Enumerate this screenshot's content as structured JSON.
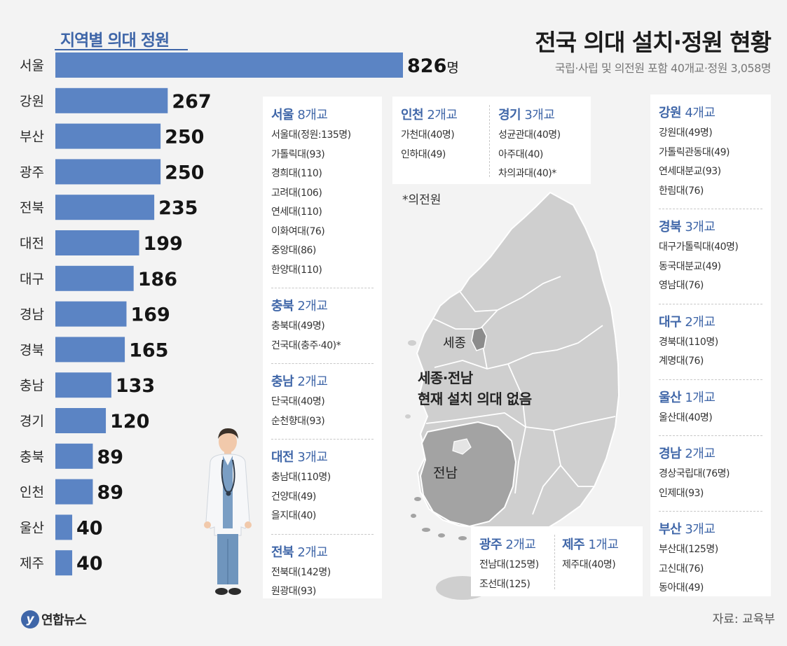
{
  "title": "전국 의대 설치·정원 현황",
  "subtitle": "국립·사립 및 의전원 포함 40개교·정원 3,058명",
  "chart_data": {
    "type": "bar",
    "orientation": "horizontal",
    "title": "지역별 의대 정원",
    "unit": "명",
    "categories": [
      "서울",
      "강원",
      "부산",
      "광주",
      "전북",
      "대전",
      "대구",
      "경남",
      "경북",
      "충남",
      "경기",
      "충북",
      "인천",
      "울산",
      "제주"
    ],
    "values": [
      826,
      267,
      250,
      250,
      235,
      199,
      186,
      169,
      165,
      133,
      120,
      89,
      89,
      40,
      40
    ],
    "xlim": [
      0,
      826
    ],
    "color": "#5b84c4"
  },
  "boxes": {
    "left": [
      {
        "name": "서울",
        "count": "8개교",
        "schools": [
          "서울대(정원:135명)",
          "가톨릭대(93)",
          "경희대(110)",
          "고려대(106)",
          "연세대(110)",
          "이화여대(76)",
          "중앙대(86)",
          "한양대(110)"
        ]
      },
      {
        "name": "충북",
        "count": "2개교",
        "schools": [
          "충북대(49명)",
          "건국대(충주·40)*"
        ]
      },
      {
        "name": "충남",
        "count": "2개교",
        "schools": [
          "단국대(40명)",
          "순천향대(93)"
        ]
      },
      {
        "name": "대전",
        "count": "3개교",
        "schools": [
          "충남대(110명)",
          "건양대(49)",
          "을지대(40)"
        ]
      },
      {
        "name": "전북",
        "count": "2개교",
        "schools": [
          "전북대(142명)",
          "원광대(93)"
        ]
      }
    ],
    "top": [
      {
        "name": "인천",
        "count": "2개교",
        "schools": [
          "가천대(40명)",
          "인하대(49)"
        ]
      },
      {
        "name": "경기",
        "count": "3개교",
        "schools": [
          "성균관대(40명)",
          "아주대(40)",
          "차의과대(40)*"
        ]
      }
    ],
    "right": [
      {
        "name": "강원",
        "count": "4개교",
        "schools": [
          "강원대(49명)",
          "가톨릭관동대(49)",
          "연세대분교(93)",
          "한림대(76)"
        ]
      },
      {
        "name": "경북",
        "count": "3개교",
        "schools": [
          "대구가톨릭대(40명)",
          "동국대분교(49)",
          "영남대(76)"
        ]
      },
      {
        "name": "대구",
        "count": "2개교",
        "schools": [
          "경북대(110명)",
          "계명대(76)"
        ]
      },
      {
        "name": "울산",
        "count": "1개교",
        "schools": [
          "울산대(40명)"
        ]
      },
      {
        "name": "경남",
        "count": "2개교",
        "schools": [
          "경상국립대(76명)",
          "인제대(93)"
        ]
      },
      {
        "name": "부산",
        "count": "3개교",
        "schools": [
          "부산대(125명)",
          "고신대(76)",
          "동아대(49)"
        ]
      }
    ],
    "bottom": [
      {
        "name": "광주",
        "count": "2개교",
        "schools": [
          "전남대(125명)",
          "조선대(125)"
        ]
      },
      {
        "name": "제주",
        "count": "1개교",
        "schools": [
          "제주대(40명)"
        ]
      }
    ]
  },
  "map": {
    "note": "*의전원",
    "sejong": "세종",
    "jeonnam": "전남",
    "caption_line1": "세종·전남",
    "caption_line2": "현재 설치 의대 없음"
  },
  "footer": {
    "logo_mark": "y",
    "logo_text": "연합뉴스",
    "source": "자료: 교육부"
  }
}
